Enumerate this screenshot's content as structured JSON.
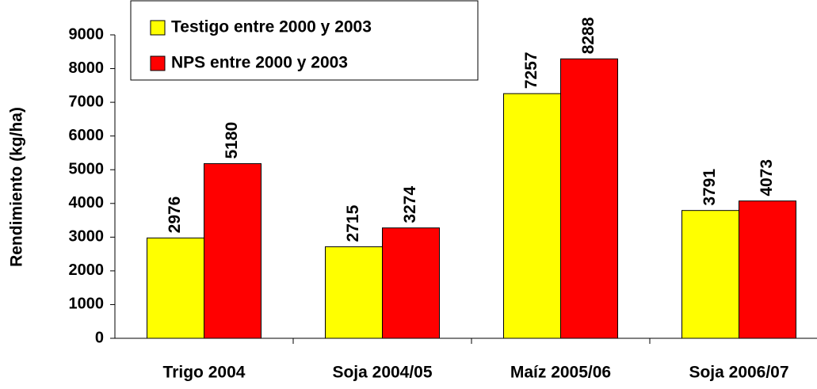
{
  "chart_data": {
    "type": "bar",
    "y_label": "Rendimiento (kg/ha)",
    "categories": [
      "Trigo 2004",
      "Soja 2004/05",
      "Maíz 2005/06",
      "Soja 2006/07"
    ],
    "series": [
      {
        "name": "Testigo entre 2000 y 2003",
        "color": "#ffff00",
        "values": [
          2976,
          2715,
          7257,
          3791
        ]
      },
      {
        "name": "NPS entre 2000 y 2003",
        "color": "#ff0000",
        "values": [
          5180,
          3274,
          8288,
          4073
        ]
      }
    ],
    "ylim": [
      0,
      9000
    ],
    "yticks": [
      0,
      1000,
      2000,
      3000,
      4000,
      5000,
      6000,
      7000,
      8000,
      9000
    ],
    "legend": "top-left"
  }
}
